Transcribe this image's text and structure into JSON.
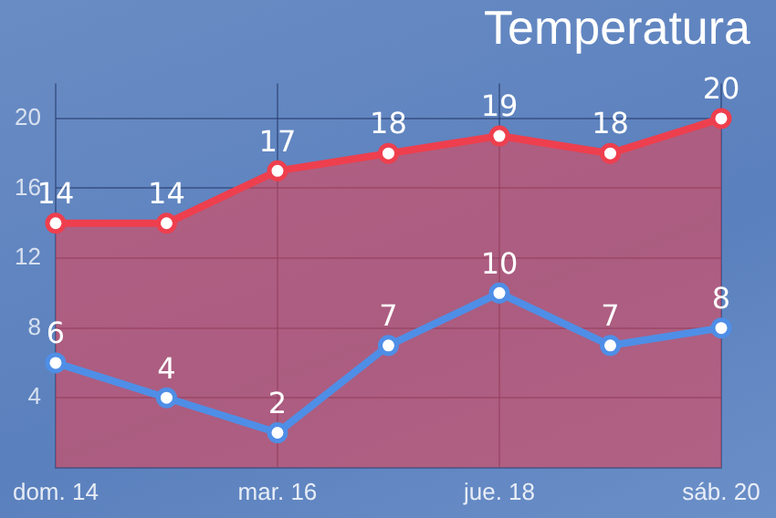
{
  "chart_data": {
    "type": "area",
    "title": "Temperatura",
    "categories": [
      "dom. 14",
      null,
      "mar. 16",
      null,
      "jue. 18",
      null,
      "sáb. 20"
    ],
    "series": [
      {
        "type": "area",
        "color": "#ee3f4e",
        "values": [
          14,
          14,
          17,
          18,
          19,
          18,
          20
        ]
      },
      {
        "type": "line",
        "color": "#4f8ee6",
        "values": [
          6,
          4,
          2,
          7,
          10,
          7,
          8
        ]
      }
    ],
    "ylim": [
      0,
      22
    ],
    "yticks": [
      4,
      8,
      12,
      16,
      20
    ],
    "grid": true,
    "legend": false,
    "marker": "circle",
    "line_style": "solid",
    "data_labels": true
  }
}
